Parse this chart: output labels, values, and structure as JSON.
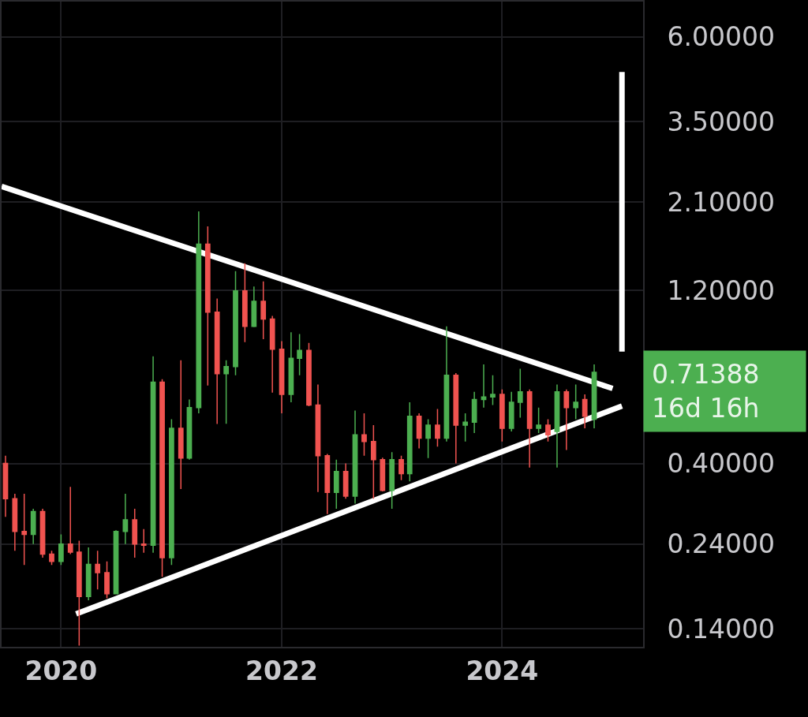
{
  "chart_data": {
    "type": "candlestick",
    "x": [
      "2019-07",
      "2019-08",
      "2019-09",
      "2019-10",
      "2019-11",
      "2019-12",
      "2020-01",
      "2020-02",
      "2020-03",
      "2020-04",
      "2020-05",
      "2020-06",
      "2020-07",
      "2020-08",
      "2020-09",
      "2020-10",
      "2020-11",
      "2020-12",
      "2021-01",
      "2021-02",
      "2021-03",
      "2021-04",
      "2021-05",
      "2021-06",
      "2021-07",
      "2021-08",
      "2021-09",
      "2021-10",
      "2021-11",
      "2021-12",
      "2022-01",
      "2022-02",
      "2022-03",
      "2022-04",
      "2022-05",
      "2022-06",
      "2022-07",
      "2022-08",
      "2022-09",
      "2022-10",
      "2022-11",
      "2022-12",
      "2023-01",
      "2023-02",
      "2023-03",
      "2023-04",
      "2023-05",
      "2023-06",
      "2023-07",
      "2023-08",
      "2023-09",
      "2023-10",
      "2023-11",
      "2023-12",
      "2024-01",
      "2024-02",
      "2024-03",
      "2024-04",
      "2024-05",
      "2024-06",
      "2024-07",
      "2024-08",
      "2024-09",
      "2024-10",
      "2024-11"
    ],
    "ohlc": [
      [
        0.4,
        0.42,
        0.285,
        0.32
      ],
      [
        0.32,
        0.33,
        0.23,
        0.26
      ],
      [
        0.26,
        0.33,
        0.21,
        0.255
      ],
      [
        0.255,
        0.3,
        0.24,
        0.295
      ],
      [
        0.295,
        0.3,
        0.22,
        0.225
      ],
      [
        0.225,
        0.23,
        0.21,
        0.215
      ],
      [
        0.215,
        0.255,
        0.21,
        0.24
      ],
      [
        0.24,
        0.345,
        0.225,
        0.228
      ],
      [
        0.228,
        0.245,
        0.126,
        0.172
      ],
      [
        0.172,
        0.235,
        0.168,
        0.211
      ],
      [
        0.211,
        0.23,
        0.18,
        0.2
      ],
      [
        0.2,
        0.215,
        0.17,
        0.175
      ],
      [
        0.175,
        0.262,
        0.175,
        0.26
      ],
      [
        0.26,
        0.33,
        0.24,
        0.28
      ],
      [
        0.28,
        0.3,
        0.22,
        0.24
      ],
      [
        0.24,
        0.264,
        0.227,
        0.238
      ],
      [
        0.238,
        0.79,
        0.227,
        0.67
      ],
      [
        0.67,
        0.683,
        0.195,
        0.22
      ],
      [
        0.22,
        0.53,
        0.21,
        0.5
      ],
      [
        0.5,
        0.77,
        0.34,
        0.414
      ],
      [
        0.414,
        0.6,
        0.41,
        0.57
      ],
      [
        0.57,
        1.98,
        0.55,
        1.61
      ],
      [
        1.61,
        1.8,
        0.656,
        1.045
      ],
      [
        1.045,
        1.14,
        0.514,
        0.707
      ],
      [
        0.707,
        0.77,
        0.515,
        0.74
      ],
      [
        0.74,
        1.355,
        0.7,
        1.196
      ],
      [
        1.196,
        1.425,
        0.864,
        0.955
      ],
      [
        0.955,
        1.23,
        0.95,
        1.12
      ],
      [
        1.12,
        1.27,
        0.88,
        1.0
      ],
      [
        1.0,
        1.02,
        0.627,
        0.826
      ],
      [
        0.826,
        0.87,
        0.55,
        0.62
      ],
      [
        0.62,
        0.92,
        0.59,
        0.78
      ],
      [
        0.78,
        0.91,
        0.7,
        0.82
      ],
      [
        0.82,
        0.86,
        0.575,
        0.58
      ],
      [
        0.58,
        0.66,
        0.334,
        0.42
      ],
      [
        0.42,
        0.425,
        0.29,
        0.333
      ],
      [
        0.333,
        0.41,
        0.3,
        0.38
      ],
      [
        0.38,
        0.4,
        0.32,
        0.325
      ],
      [
        0.325,
        0.56,
        0.31,
        0.48
      ],
      [
        0.48,
        0.55,
        0.42,
        0.46
      ],
      [
        0.46,
        0.51,
        0.32,
        0.41
      ],
      [
        0.41,
        0.415,
        0.335,
        0.337
      ],
      [
        0.337,
        0.43,
        0.3,
        0.41
      ],
      [
        0.41,
        0.42,
        0.36,
        0.375
      ],
      [
        0.375,
        0.59,
        0.357,
        0.54
      ],
      [
        0.54,
        0.55,
        0.44,
        0.47
      ],
      [
        0.47,
        0.53,
        0.414,
        0.51
      ],
      [
        0.51,
        0.565,
        0.445,
        0.47
      ],
      [
        0.47,
        0.955,
        0.46,
        0.7
      ],
      [
        0.7,
        0.71,
        0.4,
        0.51
      ],
      [
        0.51,
        0.55,
        0.46,
        0.52
      ],
      [
        0.52,
        0.63,
        0.485,
        0.6
      ],
      [
        0.6,
        0.75,
        0.57,
        0.61
      ],
      [
        0.61,
        0.7,
        0.58,
        0.62
      ],
      [
        0.62,
        0.64,
        0.46,
        0.5
      ],
      [
        0.5,
        0.63,
        0.49,
        0.59
      ],
      [
        0.59,
        0.73,
        0.535,
        0.63
      ],
      [
        0.63,
        0.64,
        0.39,
        0.5
      ],
      [
        0.5,
        0.57,
        0.485,
        0.51
      ],
      [
        0.51,
        0.53,
        0.46,
        0.48
      ],
      [
        0.49,
        0.66,
        0.39,
        0.63
      ],
      [
        0.63,
        0.64,
        0.436,
        0.57
      ],
      [
        0.57,
        0.66,
        0.53,
        0.59
      ],
      [
        0.6,
        0.62,
        0.5,
        0.54
      ],
      [
        0.53,
        0.75,
        0.5,
        0.71388
      ]
    ],
    "colors": [
      "#f05350",
      "#f05350",
      "#f05350",
      "#4caf50",
      "#f05350",
      "#f05350",
      "#4caf50",
      "#f05350",
      "#f05350",
      "#4caf50",
      "#f05350",
      "#f05350",
      "#4caf50",
      "#4caf50",
      "#f05350",
      "#f05350",
      "#4caf50",
      "#f05350",
      "#4caf50",
      "#f05350",
      "#4caf50",
      "#4caf50",
      "#f05350",
      "#f05350",
      "#4caf50",
      "#4caf50",
      "#f05350",
      "#4caf50",
      "#f05350",
      "#f05350",
      "#f05350",
      "#4caf50",
      "#4caf50",
      "#f05350",
      "#f05350",
      "#f05350",
      "#4caf50",
      "#f05350",
      "#4caf50",
      "#f05350",
      "#f05350",
      "#f05350",
      "#4caf50",
      "#f05350",
      "#4caf50",
      "#f05350",
      "#4caf50",
      "#f05350",
      "#4caf50",
      "#f05350",
      "#4caf50",
      "#4caf50",
      "#4caf50",
      "#4caf50",
      "#f05350",
      "#4caf50",
      "#4caf50",
      "#f05350",
      "#4caf50",
      "#f05350",
      "#4caf50",
      "#f05350",
      "#4caf50",
      "#f05350",
      "#4caf50"
    ],
    "series": [
      {
        "type": "line",
        "color": "#ffffff",
        "x": [
          "2019-06-18",
          "2025-01-01"
        ],
        "values": [
          2.32,
          0.644
        ]
      },
      {
        "type": "line",
        "color": "#ffffff",
        "x": [
          "2020-02-20",
          "2025-02-01"
        ],
        "values": [
          0.154,
          0.576
        ]
      },
      {
        "type": "line",
        "color": "#ffffff",
        "x": [
          "2025-02-01",
          "2025-02-01"
        ],
        "values": [
          0.814,
          4.8
        ]
      }
    ],
    "log": "y",
    "xlim": [
      "2019-06-18",
      "2025-04-12"
    ],
    "xticks": [
      {
        "value": "2020-01",
        "label": "2020"
      },
      {
        "value": "2022-01",
        "label": "2022"
      },
      {
        "value": "2024-01",
        "label": "2024"
      }
    ],
    "ylim": [
      0.125,
      7.5
    ],
    "yticks": [
      {
        "value": 0.14,
        "label": "0.14000"
      },
      {
        "value": 0.24,
        "label": "0.24000"
      },
      {
        "value": 0.4,
        "label": "0.40000"
      },
      {
        "value": 1.2,
        "label": "1.20000"
      },
      {
        "value": 2.1,
        "label": "2.10000"
      },
      {
        "value": 3.5,
        "label": "3.50000"
      },
      {
        "value": 6.0,
        "label": "6.00000"
      }
    ],
    "annotations": [
      "0.71388",
      "16d 16h"
    ],
    "grid": true
  }
}
